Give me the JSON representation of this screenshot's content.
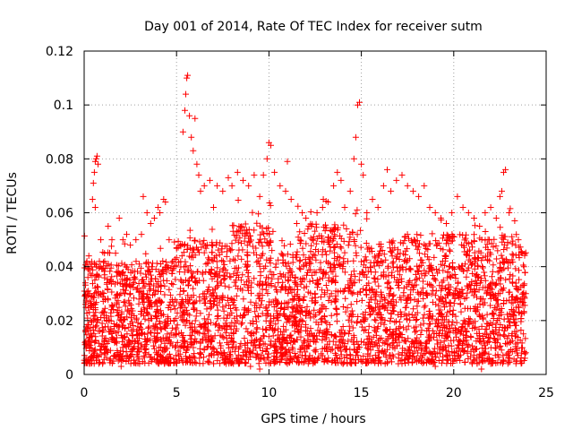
{
  "chart_data": {
    "type": "scatter",
    "title": "Day 001 of 2014, Rate Of TEC Index for receiver sutm",
    "xlabel": "GPS time / hours",
    "ylabel": "ROTI / TECUs",
    "xlim": [
      0,
      25
    ],
    "ylim": [
      0,
      0.12
    ],
    "xticks": [
      "0",
      "5",
      "10",
      "15",
      "20",
      "25"
    ],
    "yticks": [
      "0",
      "0.02",
      "0.04",
      "0.06",
      "0.08",
      "0.1",
      "0.12"
    ],
    "grid": true,
    "marker": "plus",
    "color": "#ff0000",
    "series": [
      {
        "points": [
          [
            0.1,
            0.005
          ],
          [
            0.15,
            0.042
          ],
          [
            0.25,
            0.044
          ],
          [
            0.3,
            0.03
          ],
          [
            0.35,
            0.02
          ],
          [
            0.4,
            0.04
          ],
          [
            0.45,
            0.065
          ],
          [
            0.5,
            0.071
          ],
          [
            0.55,
            0.075
          ],
          [
            0.6,
            0.079
          ],
          [
            0.65,
            0.08
          ],
          [
            0.7,
            0.081
          ],
          [
            0.75,
            0.078
          ],
          [
            0.6,
            0.062
          ],
          [
            0.9,
            0.05
          ],
          [
            1.1,
            0.045
          ],
          [
            1.3,
            0.055
          ],
          [
            1.5,
            0.05
          ],
          [
            1.7,
            0.045
          ],
          [
            1.9,
            0.058
          ],
          [
            2.1,
            0.05
          ],
          [
            2.3,
            0.052
          ],
          [
            2.5,
            0.048
          ],
          [
            2.8,
            0.05
          ],
          [
            3.1,
            0.052
          ],
          [
            3.2,
            0.066
          ],
          [
            3.4,
            0.06
          ],
          [
            3.6,
            0.056
          ],
          [
            3.8,
            0.058
          ],
          [
            4.0,
            0.062
          ],
          [
            4.1,
            0.06
          ],
          [
            4.3,
            0.065
          ],
          [
            4.4,
            0.064
          ],
          [
            4.6,
            0.05
          ],
          [
            4.8,
            0.042
          ],
          [
            5.0,
            0.047
          ],
          [
            5.2,
            0.048
          ],
          [
            5.35,
            0.09
          ],
          [
            5.45,
            0.098
          ],
          [
            5.5,
            0.104
          ],
          [
            5.55,
            0.11
          ],
          [
            5.6,
            0.111
          ],
          [
            5.7,
            0.096
          ],
          [
            5.8,
            0.088
          ],
          [
            5.9,
            0.083
          ],
          [
            6.0,
            0.095
          ],
          [
            6.1,
            0.078
          ],
          [
            6.2,
            0.074
          ],
          [
            6.3,
            0.068
          ],
          [
            6.5,
            0.07
          ],
          [
            6.8,
            0.072
          ],
          [
            7.0,
            0.062
          ],
          [
            7.2,
            0.07
          ],
          [
            7.5,
            0.068
          ],
          [
            7.8,
            0.073
          ],
          [
            8.0,
            0.07
          ],
          [
            8.3,
            0.075
          ],
          [
            8.6,
            0.072
          ],
          [
            8.9,
            0.07
          ],
          [
            9.2,
            0.074
          ],
          [
            9.5,
            0.066
          ],
          [
            9.7,
            0.074
          ],
          [
            9.9,
            0.08
          ],
          [
            10.0,
            0.086
          ],
          [
            10.1,
            0.085
          ],
          [
            10.3,
            0.075
          ],
          [
            10.6,
            0.07
          ],
          [
            10.9,
            0.068
          ],
          [
            11.0,
            0.079
          ],
          [
            11.2,
            0.065
          ],
          [
            11.5,
            0.056
          ],
          [
            11.8,
            0.06
          ],
          [
            12.0,
            0.058
          ],
          [
            12.3,
            0.055
          ],
          [
            12.6,
            0.06
          ],
          [
            12.9,
            0.062
          ],
          [
            13.2,
            0.064
          ],
          [
            13.5,
            0.07
          ],
          [
            13.7,
            0.075
          ],
          [
            13.9,
            0.072
          ],
          [
            14.1,
            0.062
          ],
          [
            14.4,
            0.068
          ],
          [
            14.6,
            0.08
          ],
          [
            14.7,
            0.088
          ],
          [
            14.8,
            0.1
          ],
          [
            14.9,
            0.101
          ],
          [
            15.0,
            0.078
          ],
          [
            15.1,
            0.074
          ],
          [
            15.3,
            0.06
          ],
          [
            15.6,
            0.065
          ],
          [
            15.9,
            0.062
          ],
          [
            16.2,
            0.07
          ],
          [
            16.4,
            0.076
          ],
          [
            16.6,
            0.068
          ],
          [
            16.9,
            0.072
          ],
          [
            17.2,
            0.074
          ],
          [
            17.5,
            0.07
          ],
          [
            17.8,
            0.068
          ],
          [
            18.1,
            0.066
          ],
          [
            18.4,
            0.07
          ],
          [
            18.7,
            0.062
          ],
          [
            19.0,
            0.06
          ],
          [
            19.3,
            0.058
          ],
          [
            19.6,
            0.056
          ],
          [
            19.9,
            0.06
          ],
          [
            20.2,
            0.066
          ],
          [
            20.5,
            0.062
          ],
          [
            20.8,
            0.06
          ],
          [
            21.1,
            0.058
          ],
          [
            21.4,
            0.055
          ],
          [
            21.7,
            0.06
          ],
          [
            22.0,
            0.062
          ],
          [
            22.3,
            0.058
          ],
          [
            22.5,
            0.066
          ],
          [
            22.6,
            0.068
          ],
          [
            22.7,
            0.075
          ],
          [
            22.8,
            0.076
          ],
          [
            23.0,
            0.06
          ],
          [
            23.3,
            0.057
          ],
          [
            23.5,
            0.05
          ],
          [
            23.7,
            0.045
          ],
          [
            23.8,
            0.04
          ],
          [
            23.85,
            0.006
          ],
          [
            23.9,
            0.03
          ],
          [
            1.0,
            0.004
          ],
          [
            2.0,
            0.003
          ],
          [
            3.0,
            0.004
          ],
          [
            4.0,
            0.005
          ],
          [
            6.0,
            0.006
          ],
          [
            7.0,
            0.004
          ],
          [
            8.0,
            0.005
          ],
          [
            9.0,
            0.003
          ],
          [
            9.5,
            0.002
          ],
          [
            11.0,
            0.004
          ],
          [
            12.0,
            0.006
          ],
          [
            13.0,
            0.005
          ],
          [
            14.0,
            0.004
          ],
          [
            16.0,
            0.005
          ],
          [
            17.0,
            0.004
          ],
          [
            18.0,
            0.006
          ],
          [
            19.0,
            0.003
          ],
          [
            20.0,
            0.005
          ],
          [
            21.0,
            0.004
          ],
          [
            21.5,
            0.002
          ],
          [
            22.0,
            0.004
          ],
          [
            23.0,
            0.005
          ],
          [
            0.5,
            0.02
          ],
          [
            1.5,
            0.025
          ],
          [
            2.5,
            0.03
          ],
          [
            3.5,
            0.02
          ],
          [
            4.5,
            0.015
          ],
          [
            5.5,
            0.035
          ],
          [
            6.5,
            0.03
          ],
          [
            7.5,
            0.025
          ],
          [
            8.5,
            0.035
          ],
          [
            9.5,
            0.03
          ],
          [
            10.5,
            0.02
          ],
          [
            11.5,
            0.025
          ],
          [
            12.5,
            0.03
          ],
          [
            13.5,
            0.035
          ],
          [
            14.5,
            0.03
          ],
          [
            15.5,
            0.025
          ],
          [
            16.5,
            0.03
          ],
          [
            17.5,
            0.028
          ],
          [
            18.5,
            0.03
          ],
          [
            19.5,
            0.025
          ],
          [
            20.5,
            0.03
          ],
          [
            21.5,
            0.028
          ],
          [
            22.5,
            0.03
          ],
          [
            23.5,
            0.025
          ]
        ]
      }
    ]
  }
}
